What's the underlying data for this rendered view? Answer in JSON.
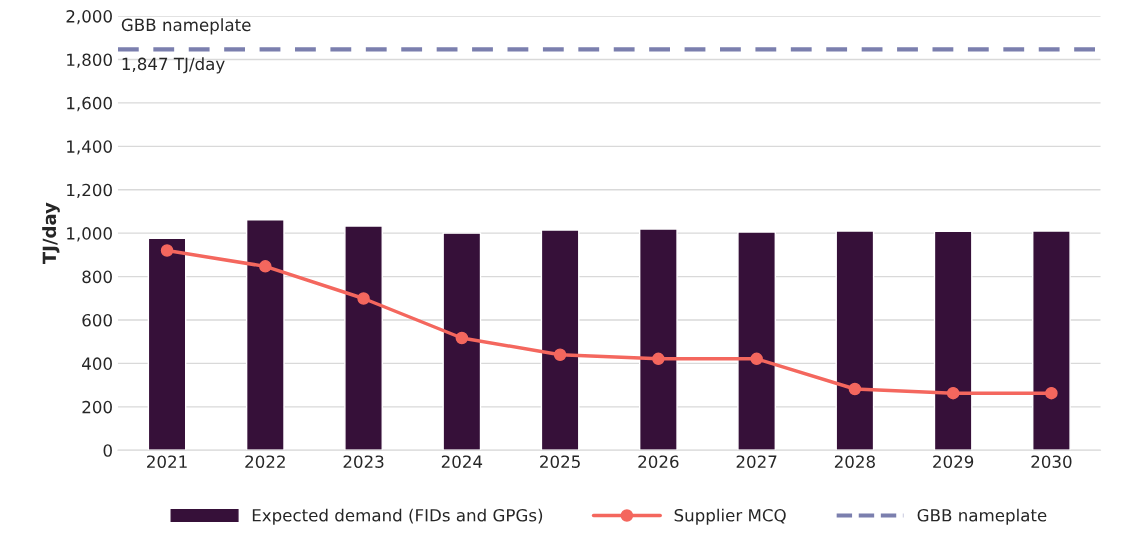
{
  "chart_data": {
    "type": "bar",
    "ylabel": "TJ/day",
    "categories": [
      "2021",
      "2022",
      "2023",
      "2024",
      "2025",
      "2026",
      "2027",
      "2028",
      "2029",
      "2030"
    ],
    "series": [
      {
        "name": "Expected demand (FIDs and GPGs)",
        "color": "#361039",
        "values": [
          976,
          1062,
          1033,
          1000,
          1014,
          1019,
          1005,
          1010,
          1008,
          1010
        ]
      },
      {
        "name": "Supplier MCQ",
        "type": "line",
        "color": "#f4675e",
        "marker": "circle",
        "values": [
          920,
          847,
          699,
          517,
          440,
          421,
          421,
          282,
          263,
          263
        ]
      }
    ],
    "ref_lines": [
      {
        "axis": "y",
        "value": 1847,
        "label": "GBB nameplate",
        "color": "#7b7fae",
        "line_style": "dashed"
      }
    ],
    "annotations": [
      "GBB nameplate",
      "1,847 TJ/day"
    ],
    "ylim": [
      0,
      2000
    ],
    "yticks": [
      {
        "value": 0,
        "label": "0"
      },
      {
        "value": 200,
        "label": "200"
      },
      {
        "value": 400,
        "label": "400"
      },
      {
        "value": 600,
        "label": "600"
      },
      {
        "value": 800,
        "label": "800"
      },
      {
        "value": 1000,
        "label": "1,000"
      },
      {
        "value": 1200,
        "label": "1,200"
      },
      {
        "value": 1400,
        "label": "1,400"
      },
      {
        "value": 1600,
        "label": "1,600"
      },
      {
        "value": 1800,
        "label": "1,800"
      },
      {
        "value": 2000,
        "label": "2,000"
      }
    ],
    "grid": "y",
    "legend": "bottom"
  }
}
